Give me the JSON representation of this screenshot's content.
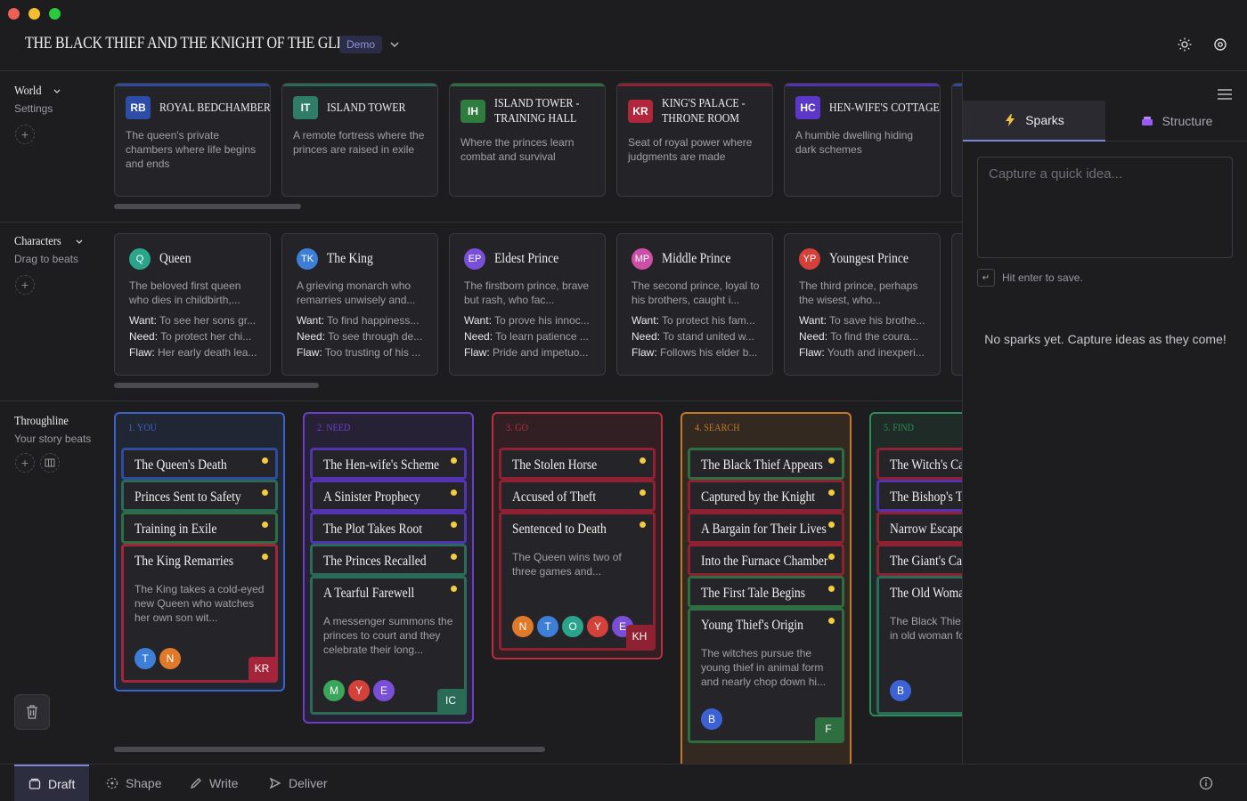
{
  "app": {
    "title": "THE BLACK THIEF AND THE KNIGHT OF THE GLEN",
    "badge": "Demo"
  },
  "colors": {
    "accent": "#7e83d8",
    "background": "#1d1d20",
    "beat_dot": "#f2cc3c"
  },
  "world": {
    "label": "World",
    "sub": "Settings",
    "settings": [
      {
        "code": "RB",
        "title": "ROYAL BEDCHAMBER",
        "desc": "The queen's private chambers where life begins and ends",
        "color": "#2c4ea8",
        "bar": "#2f4c9c"
      },
      {
        "code": "IT",
        "title": "ISLAND TOWER",
        "desc": "A remote fortress where the princes are raised in exile",
        "color": "#2f7d66",
        "bar": "#2a6b57"
      },
      {
        "code": "IH",
        "title": "ISLAND TOWER - TRAINING HALL",
        "desc": "Where the princes learn combat and survival",
        "color": "#2e7d3e",
        "bar": "#2e6e40"
      },
      {
        "code": "KR",
        "title": "KING'S PALACE - THRONE ROOM",
        "desc": "Seat of royal power where judgments are made",
        "color": "#b1263b",
        "bar": "#8f2232"
      },
      {
        "code": "HC",
        "title": "HEN-WIFE'S COTTAGE",
        "desc": "A humble dwelling hiding dark schemes",
        "color": "#5b38c9",
        "bar": "#5233b0"
      }
    ]
  },
  "characters": {
    "label": "Characters",
    "sub": "Drag to beats",
    "want_label": "Want:",
    "need_label": "Need:",
    "flaw_label": "Flaw:",
    "items": [
      {
        "code": "Q",
        "name": "Queen",
        "color": "#2aa58c",
        "desc": "The beloved first queen who dies in childbirth,...",
        "want": "To see her sons gr...",
        "need": "To protect her chi...",
        "flaw": "Her early death lea..."
      },
      {
        "code": "TK",
        "name": "The King",
        "color": "#3d7fd6",
        "desc": "A grieving monarch who remarries unwisely and...",
        "want": "To find happiness...",
        "need": "To see through de...",
        "flaw": "Too trusting of his ..."
      },
      {
        "code": "EP",
        "name": "Eldest Prince",
        "color": "#7a4fd8",
        "desc": "The firstborn prince, brave but rash, who fac...",
        "want": "To prove his innoc...",
        "need": "To learn patience ...",
        "flaw": "Pride and impetuo..."
      },
      {
        "code": "MP",
        "name": "Middle Prince",
        "color": "#cc4fa8",
        "desc": "The second prince, loyal to his brothers, caught i...",
        "want": "To protect his fam...",
        "need": "To stand united w...",
        "flaw": "Follows his elder b..."
      },
      {
        "code": "YP",
        "name": "Youngest Prince",
        "color": "#d4413a",
        "desc": "The third prince, perhaps the wisest, who...",
        "want": "To save his brothe...",
        "need": "To find the coura...",
        "flaw": "Youth and inexperi..."
      }
    ]
  },
  "throughline": {
    "label": "Throughline",
    "sub": "Your story beats",
    "columns": [
      {
        "title": "1. YOU",
        "color": "#3b62c4",
        "beats": [
          {
            "title": "The Queen's Death",
            "color": "#2f4c9c"
          },
          {
            "title": "Princes Sent to Safety",
            "color": "#2a6b57"
          },
          {
            "title": "Training in Exile",
            "color": "#2e6e40"
          },
          {
            "title": "The King Remarries",
            "color": "#a4253a",
            "desc": "The King takes a cold-eyed new Queen who watches her own son wit...",
            "pills": [
              {
                "t": "T",
                "c": "#3d7fd6"
              },
              {
                "t": "N",
                "c": "#e07a2a"
              }
            ],
            "pov": "KR",
            "povc": "#a4253a"
          }
        ]
      },
      {
        "title": "2. NEED",
        "color": "#6a3fc4",
        "beats": [
          {
            "title": "The Hen-wife's Scheme",
            "color": "#5233b0"
          },
          {
            "title": "A Sinister Prophecy",
            "color": "#5233b0"
          },
          {
            "title": "The Plot Takes Root",
            "color": "#5233b0"
          },
          {
            "title": "The Princes Recalled",
            "color": "#2a6b57"
          },
          {
            "title": "A Tearful Farewell",
            "color": "#2a6b57",
            "desc": "A messenger summons the princes to court and they celebrate their long...",
            "pills": [
              {
                "t": "M",
                "c": "#3aa65a"
              },
              {
                "t": "Y",
                "c": "#d4413a"
              },
              {
                "t": "E",
                "c": "#7a4fd8"
              }
            ],
            "pov": "IC",
            "povc": "#2a6b57"
          }
        ]
      },
      {
        "title": "3. GO",
        "color": "#b83040",
        "beats": [
          {
            "title": "The Stolen Horse",
            "color": "#8f2232"
          },
          {
            "title": "Accused of Theft",
            "color": "#8f2232"
          },
          {
            "title": "Sentenced to Death",
            "color": "#8f2232",
            "desc": "The Queen wins two of three games and...",
            "pills": [
              {
                "t": "N",
                "c": "#e07a2a"
              },
              {
                "t": "T",
                "c": "#3d7fd6"
              },
              {
                "t": "O",
                "c": "#2aa58c"
              },
              {
                "t": "Y",
                "c": "#d4413a"
              },
              {
                "t": "E",
                "c": "#7a4fd8"
              }
            ],
            "pov": "KH",
            "povc": "#8f2232"
          }
        ]
      },
      {
        "title": "4. SEARCH",
        "color": "#c07a2a",
        "beats": [
          {
            "title": "The Black Thief Appears",
            "color": "#2e6e40"
          },
          {
            "title": "Captured by the Knight",
            "color": "#8f2232"
          },
          {
            "title": "A Bargain for Their Lives",
            "color": "#8f2232"
          },
          {
            "title": "Into the Furnace Chamber",
            "color": "#8f2232"
          },
          {
            "title": "The First Tale Begins",
            "color": "#2e6e40"
          },
          {
            "title": "Young Thief's Origin",
            "color": "#2e6e40",
            "desc": "The witches pursue the young thief in animal form and nearly chop down hi...",
            "pills": [
              {
                "t": "B",
                "c": "#3d62d6"
              }
            ],
            "pov": "F",
            "povc": "#2e6e40"
          }
        ]
      },
      {
        "title": "5. FIND",
        "color": "#2e8a5a",
        "beats": [
          {
            "title": "The Witch's Ca",
            "color": "#8f2232"
          },
          {
            "title": "The Bishop's T",
            "color": "#5233b0"
          },
          {
            "title": "Narrow Escape",
            "color": "#8f2232"
          },
          {
            "title": "The Giant's Ca",
            "color": "#8f2232"
          },
          {
            "title": "The Old Woma",
            "color": "#2a6b57",
            "desc": "The Black Thie the rescued in old woman fo",
            "pills": [
              {
                "t": "B",
                "c": "#3d62d6"
              }
            ]
          }
        ]
      }
    ]
  },
  "sidebar": {
    "tabs": [
      {
        "label": "Sparks"
      },
      {
        "label": "Structure"
      }
    ],
    "placeholder": "Capture a quick idea...",
    "hint": "Hit enter to save.",
    "empty": "No sparks yet. Capture ideas as they come!"
  },
  "bottom": {
    "tabs": [
      {
        "label": "Draft"
      },
      {
        "label": "Shape"
      },
      {
        "label": "Write"
      },
      {
        "label": "Deliver"
      }
    ]
  }
}
